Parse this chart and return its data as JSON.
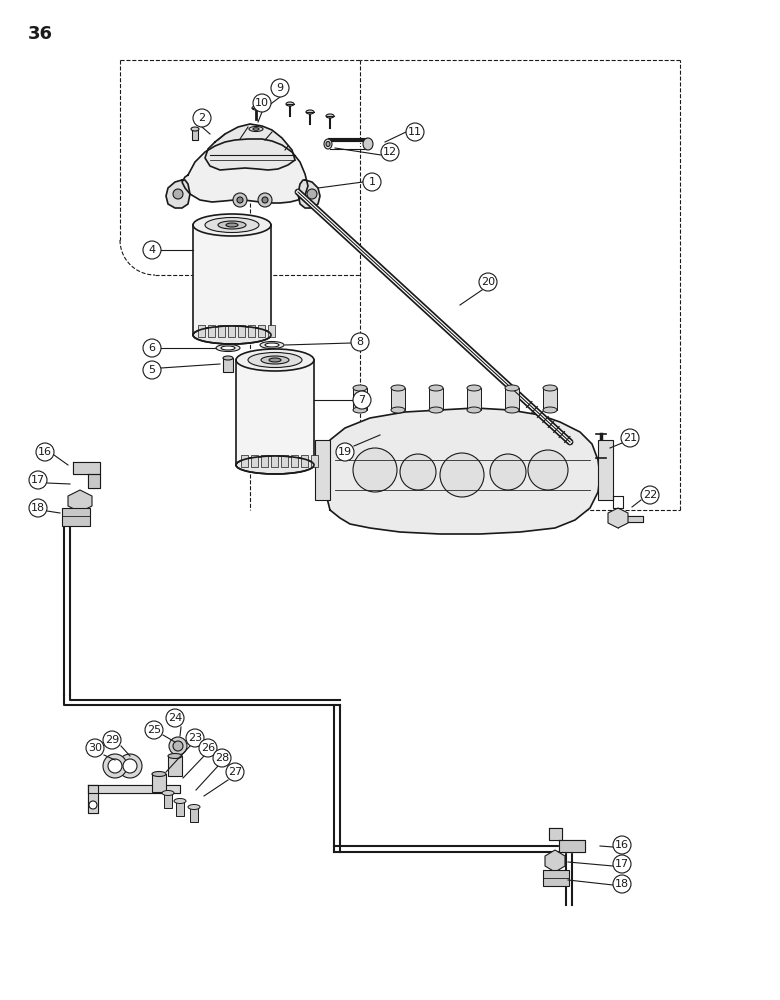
{
  "bg_color": "#ffffff",
  "page_number": "36",
  "lc": "#1a1a1a",
  "label_fontsize": 8,
  "page_num_fontsize": 13
}
